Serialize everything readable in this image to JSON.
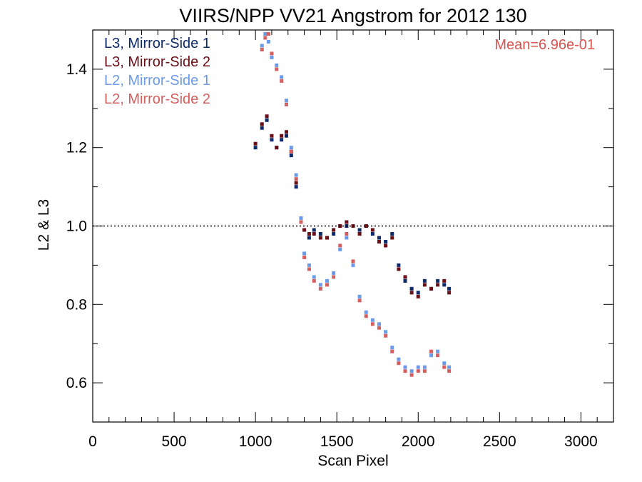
{
  "chart_data": {
    "type": "scatter",
    "title": "VIIRS/NPP VV21 Angstrom for 2012 130",
    "xlabel": "Scan Pixel",
    "ylabel": "L2 & L3",
    "xlim": [
      0,
      3200
    ],
    "ylim": [
      0.5,
      1.5
    ],
    "x_ticks": [
      0,
      500,
      1000,
      1500,
      2000,
      2500,
      3000
    ],
    "x_tick_labels": [
      "0",
      "500",
      "1000",
      "1500",
      "2000",
      "2500",
      "3000"
    ],
    "y_ticks": [
      0.6,
      0.8,
      1.0,
      1.2,
      1.4
    ],
    "y_tick_labels": [
      "0.6",
      "0.8",
      "1.0",
      "1.2",
      "1.4"
    ],
    "reference_line": {
      "y": 1.0,
      "style": "dotted"
    },
    "annotation": "Mean=6.96e-01",
    "annotation_color": "#d9534f",
    "legend_position": "top-left",
    "series": [
      {
        "name": "L3, Mirror-Side 1",
        "color": "#0d2a6b",
        "x": [
          1000,
          1040,
          1070,
          1100,
          1130,
          1160,
          1190,
          1220,
          1250,
          1280,
          1300,
          1330,
          1360,
          1400,
          1440,
          1480,
          1520,
          1560,
          1600,
          1640,
          1680,
          1720,
          1760,
          1800,
          1840,
          1880,
          1920,
          1960,
          2000,
          2040,
          2080,
          2120,
          2160,
          2190
        ],
        "y": [
          1.2,
          1.25,
          1.27,
          1.22,
          1.2,
          1.22,
          1.23,
          1.18,
          1.1,
          1.02,
          0.99,
          0.97,
          0.99,
          0.98,
          0.97,
          0.98,
          1.0,
          1.0,
          1.0,
          0.99,
          1.0,
          0.98,
          0.97,
          0.96,
          0.98,
          0.9,
          0.86,
          0.84,
          0.83,
          0.86,
          0.84,
          0.86,
          0.85,
          0.84
        ]
      },
      {
        "name": "L3, Mirror-Side 2",
        "color": "#6b0f17",
        "x": [
          1000,
          1040,
          1070,
          1100,
          1130,
          1160,
          1190,
          1220,
          1250,
          1280,
          1300,
          1330,
          1360,
          1400,
          1440,
          1480,
          1520,
          1560,
          1600,
          1640,
          1680,
          1720,
          1760,
          1800,
          1840,
          1880,
          1920,
          1960,
          2000,
          2040,
          2080,
          2120,
          2160,
          2190
        ],
        "y": [
          1.21,
          1.26,
          1.28,
          1.23,
          1.2,
          1.23,
          1.24,
          1.19,
          1.11,
          1.02,
          0.99,
          0.98,
          0.98,
          0.97,
          0.97,
          0.99,
          1.0,
          1.01,
          1.0,
          0.98,
          1.0,
          0.99,
          0.96,
          0.95,
          0.97,
          0.89,
          0.87,
          0.83,
          0.82,
          0.85,
          0.84,
          0.85,
          0.86,
          0.83
        ]
      },
      {
        "name": "L2, Mirror-Side 1",
        "color": "#6b9be8",
        "x": [
          1040,
          1060,
          1080,
          1100,
          1130,
          1160,
          1190,
          1220,
          1250,
          1280,
          1300,
          1330,
          1360,
          1400,
          1440,
          1480,
          1520,
          1560,
          1600,
          1640,
          1680,
          1720,
          1760,
          1800,
          1840,
          1880,
          1920,
          1960,
          2000,
          2040,
          2080,
          2120,
          2160,
          2190
        ],
        "y": [
          1.46,
          1.49,
          1.47,
          1.43,
          1.41,
          1.38,
          1.32,
          1.2,
          1.13,
          1.02,
          0.93,
          0.9,
          0.87,
          0.85,
          0.86,
          0.88,
          0.94,
          0.97,
          0.9,
          0.82,
          0.78,
          0.76,
          0.75,
          0.73,
          0.69,
          0.66,
          0.64,
          0.63,
          0.64,
          0.64,
          0.67,
          0.68,
          0.65,
          0.64
        ]
      },
      {
        "name": "L2, Mirror-Side 2",
        "color": "#d45f5f",
        "x": [
          1040,
          1060,
          1080,
          1100,
          1130,
          1160,
          1190,
          1220,
          1250,
          1280,
          1300,
          1330,
          1360,
          1400,
          1440,
          1480,
          1520,
          1560,
          1600,
          1640,
          1680,
          1720,
          1760,
          1800,
          1840,
          1880,
          1920,
          1960,
          2000,
          2040,
          2080,
          2120,
          2160,
          2190
        ],
        "y": [
          1.45,
          1.48,
          1.49,
          1.44,
          1.4,
          1.37,
          1.31,
          1.19,
          1.12,
          1.01,
          0.92,
          0.89,
          0.86,
          0.84,
          0.85,
          0.87,
          0.95,
          0.98,
          0.91,
          0.81,
          0.77,
          0.75,
          0.74,
          0.72,
          0.68,
          0.65,
          0.63,
          0.62,
          0.63,
          0.63,
          0.68,
          0.67,
          0.64,
          0.63
        ]
      }
    ]
  }
}
